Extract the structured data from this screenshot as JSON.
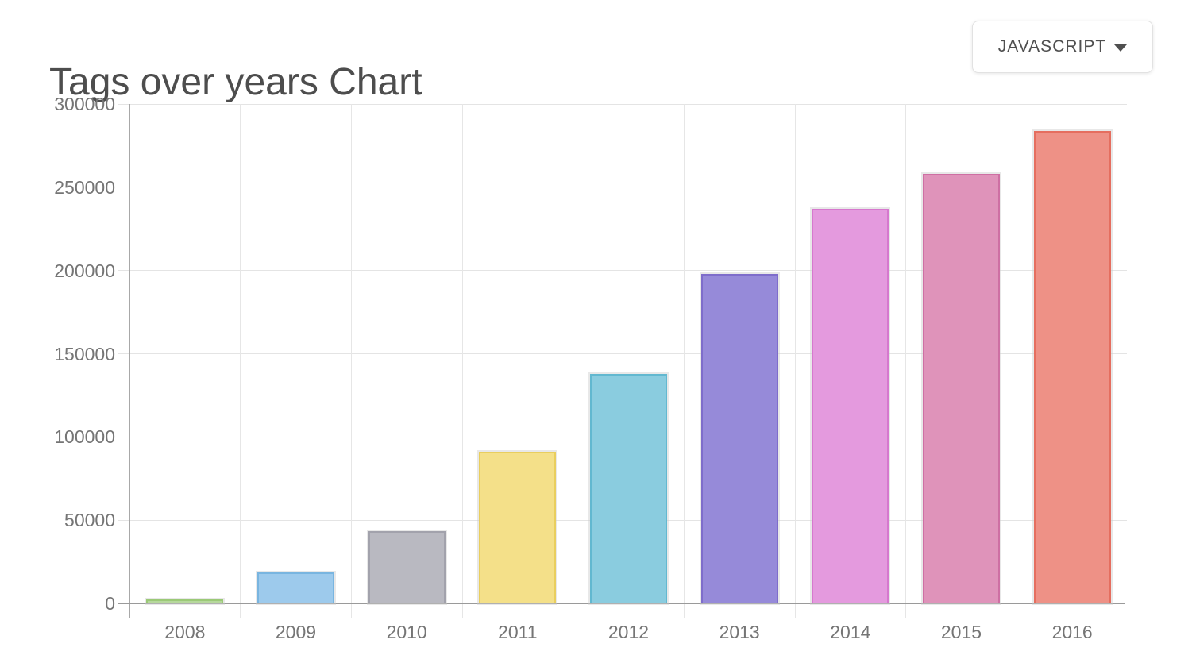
{
  "page": {
    "title": "Tags over years Chart"
  },
  "controls": {
    "tag_selector": {
      "selected": "JAVASCRIPT",
      "caret_icon": "caret-down"
    }
  },
  "chart_data": {
    "type": "bar",
    "title": "Tags over years Chart",
    "series_name": "JAVASCRIPT",
    "categories": [
      "2008",
      "2009",
      "2010",
      "2011",
      "2012",
      "2013",
      "2014",
      "2015",
      "2016"
    ],
    "values": [
      2500,
      18500,
      43500,
      91000,
      138000,
      198000,
      237000,
      258000,
      284000
    ],
    "xlabel": "",
    "ylabel": "",
    "ylim": [
      0,
      300000
    ],
    "ytick_step": 50000,
    "ytick_labels": [
      "0",
      "50000",
      "100000",
      "150000",
      "200000",
      "250000",
      "300000"
    ],
    "grid": true,
    "legend_position": "none",
    "bar_fill_colors": [
      "#b6d89c",
      "#9dcaec",
      "#b9b9c1",
      "#f4e089",
      "#8accdf",
      "#968ad9",
      "#e49ade",
      "#df93ba",
      "#ee9186"
    ],
    "bar_border_colors": [
      "#9bc977",
      "#79b5e0",
      "#a2a2ac",
      "#e9ce5e",
      "#62b8d0",
      "#7e6dcb",
      "#d678ce",
      "#ce6fa3",
      "#e56e5f"
    ],
    "grid_color": "#e4e4e4",
    "axis_color": "#9a9a9a",
    "tick_label_color": "#757575"
  }
}
